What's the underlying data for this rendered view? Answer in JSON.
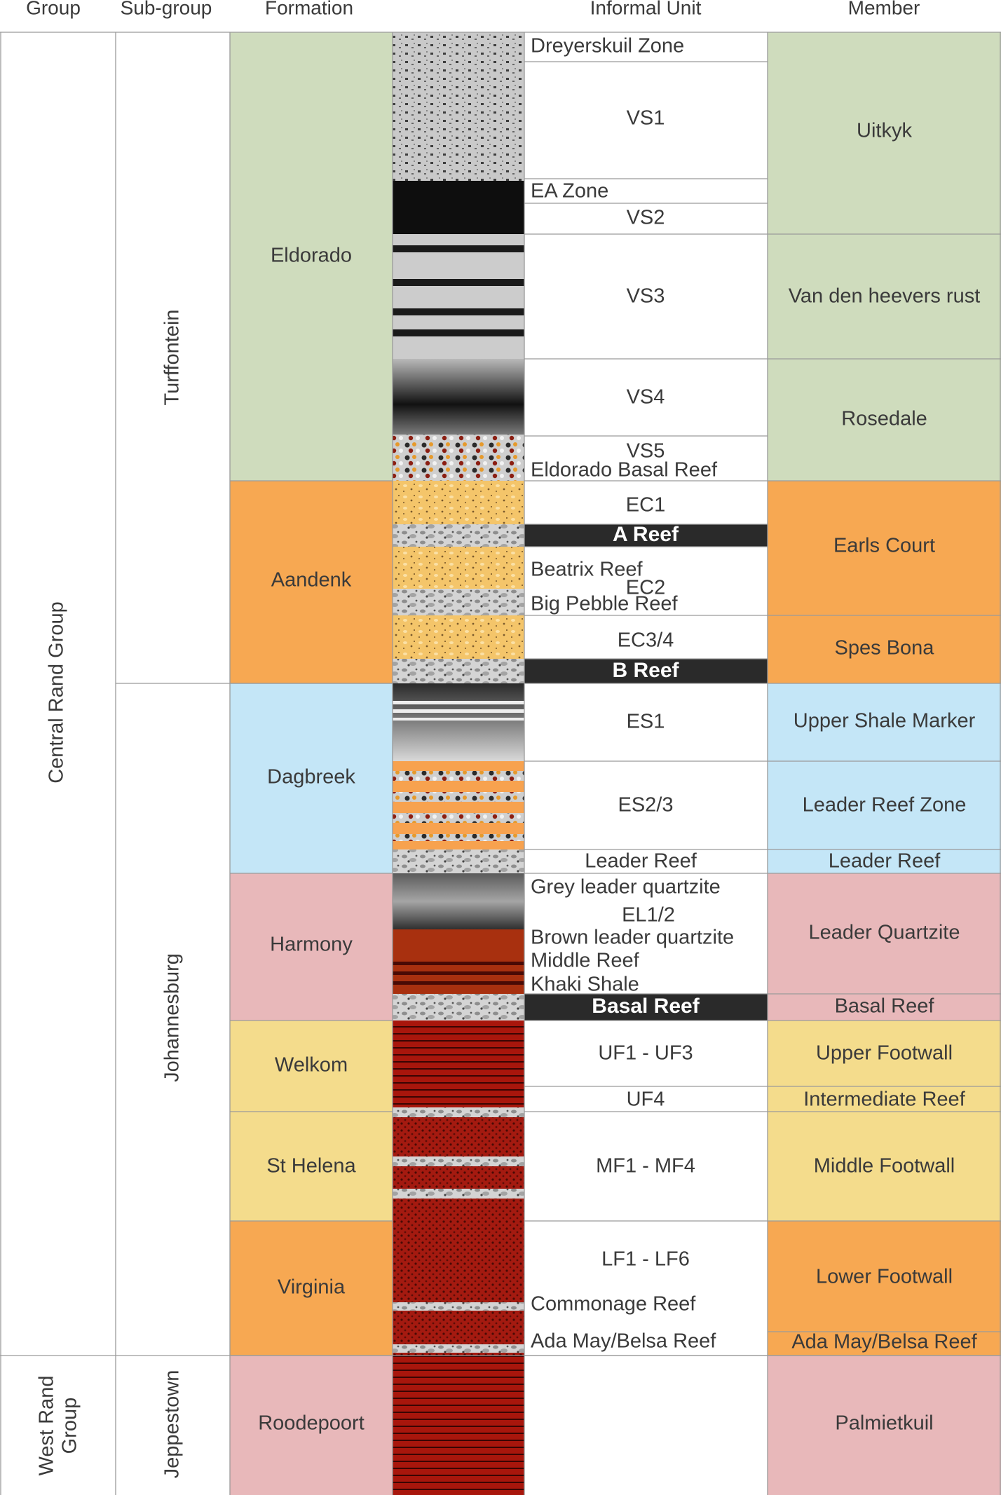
{
  "headers": {
    "group": "Group",
    "subgroup": "Sub-group",
    "formation": "Formation",
    "informal_unit": "Informal Unit",
    "member": "Member"
  },
  "colors": {
    "green": "#cfdcbd",
    "orange": "#f7a852",
    "blue": "#c4e6f7",
    "pink": "#e8b8ba",
    "yellow": "#f4dc8c",
    "reef_band": "#2a2a2a",
    "text": "#3a3a3a",
    "grid": "#9a9a9a"
  },
  "groups": [
    {
      "label": "Central Rand Group"
    },
    {
      "label": "West Rand Group"
    }
  ],
  "subgroups": [
    {
      "label": "Turffontein"
    },
    {
      "label": "Johannesburg"
    },
    {
      "label": "Jeppestown"
    }
  ],
  "formations": [
    {
      "label": "Eldorado",
      "color": "green"
    },
    {
      "label": "Aandenk",
      "color": "orange"
    },
    {
      "label": "Dagbreek",
      "color": "blue"
    },
    {
      "label": "Harmony",
      "color": "pink"
    },
    {
      "label": "Welkom",
      "color": "yellow"
    },
    {
      "label": "St Helena",
      "color": "yellow"
    },
    {
      "label": "Virginia",
      "color": "orange"
    },
    {
      "label": "Roodepoort",
      "color": "pink"
    }
  ],
  "informal_units": [
    {
      "label": "Dreyerskuil Zone",
      "band": false
    },
    {
      "label": "VS1",
      "band": false
    },
    {
      "label": "EA Zone",
      "band": false
    },
    {
      "label": "VS2",
      "band": false
    },
    {
      "label": "VS3",
      "band": false
    },
    {
      "label": "VS4",
      "band": false
    },
    {
      "label": "VS5",
      "band": false
    },
    {
      "label": "Eldorado Basal Reef",
      "band": false
    },
    {
      "label": "EC1",
      "band": false
    },
    {
      "label": "A Reef",
      "band": true
    },
    {
      "label": "Beatrix Reef",
      "band": false
    },
    {
      "label": "EC2",
      "band": false
    },
    {
      "label": "Big Pebble Reef",
      "band": false
    },
    {
      "label": "EC3/4",
      "band": false
    },
    {
      "label": "B Reef",
      "band": true
    },
    {
      "label": "ES1",
      "band": false
    },
    {
      "label": "ES2/3",
      "band": false
    },
    {
      "label": "Leader Reef",
      "band": false
    },
    {
      "label": "Grey leader quartzite",
      "band": false
    },
    {
      "label": "EL1/2",
      "band": false
    },
    {
      "label": "Brown leader quartzite",
      "band": false
    },
    {
      "label": "Middle Reef",
      "band": false
    },
    {
      "label": "Khaki Shale",
      "band": false
    },
    {
      "label": "Basal Reef",
      "band": true
    },
    {
      "label": "UF1 - UF3",
      "band": false
    },
    {
      "label": "UF4",
      "band": false
    },
    {
      "label": "MF1 - MF4",
      "band": false
    },
    {
      "label": "LF1 - LF6",
      "band": false
    },
    {
      "label": "Commonage Reef",
      "band": false
    },
    {
      "label": "Ada May/Belsa Reef",
      "band": false
    }
  ],
  "members": [
    {
      "label": "Uitkyk",
      "color": "green"
    },
    {
      "label": "Van den heevers rust",
      "color": "green"
    },
    {
      "label": "Rosedale",
      "color": "green"
    },
    {
      "label": "Earls Court",
      "color": "orange"
    },
    {
      "label": "Spes Bona",
      "color": "orange"
    },
    {
      "label": "Upper Shale Marker",
      "color": "blue"
    },
    {
      "label": "Leader Reef Zone",
      "color": "blue"
    },
    {
      "label": "Leader Reef",
      "color": "blue"
    },
    {
      "label": "Leader Quartzite",
      "color": "pink"
    },
    {
      "label": "Basal Reef",
      "color": "pink"
    },
    {
      "label": "Upper Footwall",
      "color": "yellow"
    },
    {
      "label": "Intermediate Reef",
      "color": "yellow"
    },
    {
      "label": "Middle Footwall",
      "color": "yellow"
    },
    {
      "label": "Lower Footwall",
      "color": "orange"
    },
    {
      "label": "Ada May/Belsa Reef",
      "color": "orange"
    },
    {
      "label": "Palmietkuil",
      "color": "pink"
    }
  ]
}
